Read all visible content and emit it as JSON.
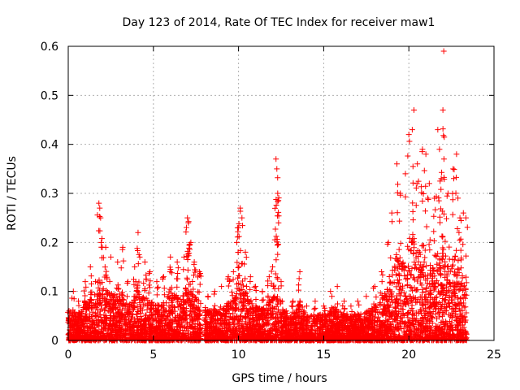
{
  "chart_data": {
    "type": "scatter",
    "title": "Day 123 of 2014, Rate Of TEC Index for receiver maw1",
    "xlabel": "GPS time / hours",
    "ylabel": "ROTI / TECUs",
    "xlim": [
      0,
      25
    ],
    "ylim": [
      0,
      0.6
    ],
    "xticks": [
      0,
      5,
      10,
      15,
      20,
      25
    ],
    "yticks": [
      0,
      0.1,
      0.2,
      0.3,
      0.4,
      0.5,
      0.6
    ],
    "xtick_labels": [
      "0",
      "5",
      "10",
      "15",
      "20",
      "25"
    ],
    "ytick_labels": [
      "0",
      "0.1",
      "0.2",
      "0.3",
      "0.4",
      "0.5",
      "0.6"
    ],
    "grid": true,
    "marker": "+",
    "marker_color": "#ff0000",
    "x_range_of_data": [
      0,
      23.4
    ],
    "data_gap_hours": [
      7.8,
      8.0
    ],
    "series": [
      {
        "points": [
          [
            0.05,
            0.06
          ],
          [
            0.3,
            0.1
          ],
          [
            0.6,
            0.08
          ],
          [
            1.0,
            0.12
          ],
          [
            1.3,
            0.15
          ],
          [
            1.6,
            0.12
          ],
          [
            1.8,
            0.28
          ],
          [
            1.85,
            0.27
          ],
          [
            1.9,
            0.25
          ],
          [
            2.0,
            0.19
          ],
          [
            2.2,
            0.19
          ],
          [
            2.5,
            0.17
          ],
          [
            2.9,
            0.16
          ],
          [
            3.2,
            0.19
          ],
          [
            3.5,
            0.12
          ],
          [
            3.9,
            0.15
          ],
          [
            4.1,
            0.22
          ],
          [
            4.2,
            0.17
          ],
          [
            4.5,
            0.16
          ],
          [
            4.8,
            0.14
          ],
          [
            5.2,
            0.12
          ],
          [
            5.6,
            0.13
          ],
          [
            6.0,
            0.17
          ],
          [
            6.4,
            0.16
          ],
          [
            6.8,
            0.17
          ],
          [
            7.0,
            0.25
          ],
          [
            7.05,
            0.24
          ],
          [
            7.2,
            0.2
          ],
          [
            7.4,
            0.16
          ],
          [
            7.7,
            0.14
          ],
          [
            8.2,
            0.09
          ],
          [
            8.6,
            0.1
          ],
          [
            9.0,
            0.11
          ],
          [
            9.4,
            0.13
          ],
          [
            9.7,
            0.14
          ],
          [
            9.9,
            0.2
          ],
          [
            10.0,
            0.23
          ],
          [
            10.1,
            0.27
          ],
          [
            10.2,
            0.25
          ],
          [
            10.4,
            0.18
          ],
          [
            10.7,
            0.13
          ],
          [
            11.0,
            0.11
          ],
          [
            11.4,
            0.1
          ],
          [
            11.8,
            0.13
          ],
          [
            12.0,
            0.15
          ],
          [
            12.2,
            0.37
          ],
          [
            12.25,
            0.35
          ],
          [
            12.3,
            0.3
          ],
          [
            12.35,
            0.24
          ],
          [
            12.5,
            0.12
          ],
          [
            12.8,
            0.06
          ],
          [
            13.2,
            0.08
          ],
          [
            13.6,
            0.14
          ],
          [
            14.0,
            0.07
          ],
          [
            14.5,
            0.08
          ],
          [
            15.0,
            0.07
          ],
          [
            15.4,
            0.1
          ],
          [
            15.8,
            0.11
          ],
          [
            16.2,
            0.08
          ],
          [
            16.6,
            0.07
          ],
          [
            17.0,
            0.08
          ],
          [
            17.5,
            0.09
          ],
          [
            18.0,
            0.11
          ],
          [
            18.4,
            0.14
          ],
          [
            18.8,
            0.2
          ],
          [
            19.0,
            0.26
          ],
          [
            19.3,
            0.36
          ],
          [
            19.5,
            0.3
          ],
          [
            19.8,
            0.34
          ],
          [
            20.0,
            0.42
          ],
          [
            20.2,
            0.43
          ],
          [
            20.3,
            0.47
          ],
          [
            20.5,
            0.36
          ],
          [
            20.8,
            0.39
          ],
          [
            21.0,
            0.38
          ],
          [
            21.2,
            0.32
          ],
          [
            21.5,
            0.29
          ],
          [
            21.7,
            0.43
          ],
          [
            21.8,
            0.39
          ],
          [
            21.9,
            0.33
          ],
          [
            22.0,
            0.47
          ],
          [
            22.05,
            0.59
          ],
          [
            22.3,
            0.3
          ],
          [
            22.6,
            0.35
          ],
          [
            22.8,
            0.38
          ],
          [
            23.0,
            0.25
          ],
          [
            23.2,
            0.26
          ],
          [
            23.35,
            0.25
          ]
        ]
      }
    ]
  }
}
